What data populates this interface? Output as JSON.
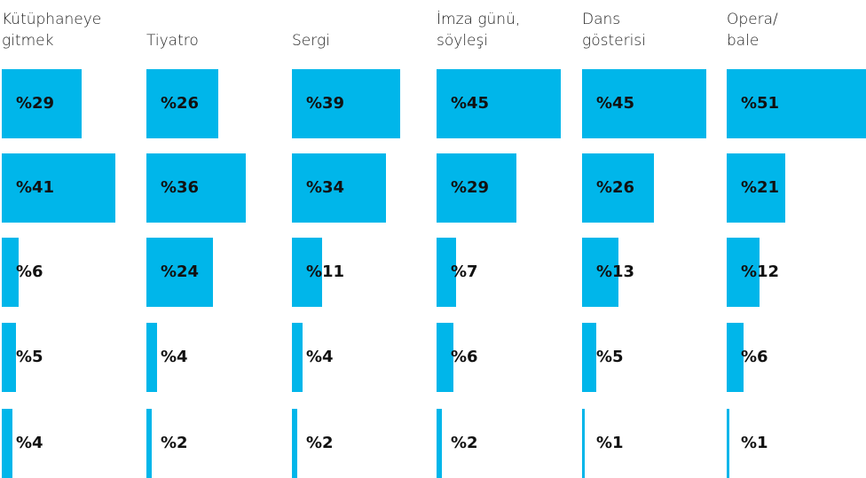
{
  "chart_data": [
    {
      "type": "bar",
      "title": "Kütüphaneye\ngitmek",
      "values": [
        29,
        41,
        6,
        5,
        4
      ],
      "value_labels": [
        "%29",
        "%41",
        "%6",
        "%5",
        "%4"
      ],
      "color": "#00b6ea"
    },
    {
      "type": "bar",
      "title": "Tiyatro",
      "values": [
        26,
        36,
        24,
        4,
        2
      ],
      "value_labels": [
        "%26",
        "%36",
        "%24",
        "%4",
        "%2"
      ],
      "color": "#00b6ea"
    },
    {
      "type": "bar",
      "title": "Sergi",
      "values": [
        39,
        34,
        11,
        4,
        2
      ],
      "value_labels": [
        "%39",
        "%34",
        "%11",
        "%4",
        "%2"
      ],
      "color": "#00b6ea"
    },
    {
      "type": "bar",
      "title": "İmza günü,\nsöyleşi",
      "values": [
        45,
        29,
        7,
        6,
        2
      ],
      "value_labels": [
        "%45",
        "%29",
        "%7",
        "%6",
        "%2"
      ],
      "color": "#00b6ea"
    },
    {
      "type": "bar",
      "title": "Dans\ngösterisi",
      "values": [
        45,
        26,
        13,
        5,
        1
      ],
      "value_labels": [
        "%45",
        "%26",
        "%13",
        "%5",
        "%1"
      ],
      "color": "#00b6ea"
    },
    {
      "type": "bar",
      "title": "Opera/\nbale",
      "values": [
        51,
        21,
        12,
        6,
        1
      ],
      "value_labels": [
        "%51",
        "%21",
        "%12",
        "%6",
        "%1"
      ],
      "color": "#00b6ea"
    }
  ]
}
